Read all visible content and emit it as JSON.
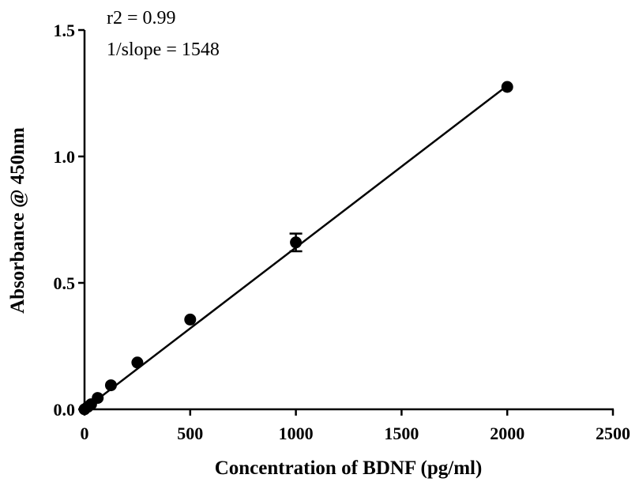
{
  "chart_data": {
    "type": "scatter",
    "title": "",
    "xlabel": "Concentration of BDNF (pg/ml)",
    "ylabel": "Absorbance @ 450nm",
    "xlim": [
      0,
      2500
    ],
    "ylim": [
      0,
      1.5
    ],
    "x_ticks": [
      "0",
      "500",
      "1000",
      "1500",
      "2000",
      "2500"
    ],
    "y_ticks": [
      "0.0",
      "0.5",
      "1.0",
      "1.5"
    ],
    "grid": false,
    "points": [
      {
        "x": 0,
        "y": 0.0,
        "err": 0
      },
      {
        "x": 15.6,
        "y": 0.01,
        "err": 0
      },
      {
        "x": 31.25,
        "y": 0.02,
        "err": 0
      },
      {
        "x": 62.5,
        "y": 0.045,
        "err": 0
      },
      {
        "x": 125,
        "y": 0.095,
        "err": 0
      },
      {
        "x": 250,
        "y": 0.185,
        "err": 0
      },
      {
        "x": 500,
        "y": 0.355,
        "err": 0
      },
      {
        "x": 1000,
        "y": 0.66,
        "err": 0.035
      },
      {
        "x": 2000,
        "y": 1.275,
        "err": 0
      }
    ],
    "fit_line": {
      "x": [
        0,
        2000
      ],
      "y": [
        0.0,
        1.28
      ]
    },
    "annotations": [
      "r2 = 0.99",
      "1/slope = 1548"
    ]
  }
}
